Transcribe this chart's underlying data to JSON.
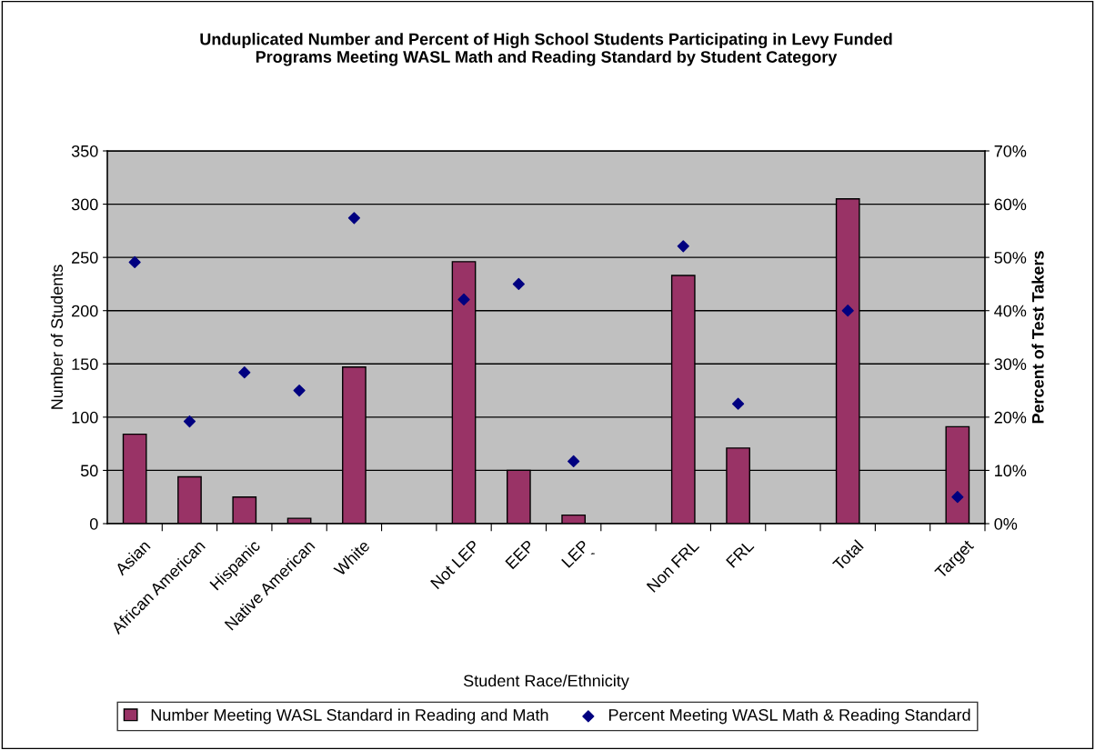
{
  "chart_data": {
    "type": "bar",
    "title": "Unduplicated Number and Percent of High School Students Participating in Levy Funded\nPrograms Meeting WASL Math and Reading Standard by Student Category",
    "xlabel": "Student Race/Ethnicity",
    "ylabel": "Number of Students",
    "y2label": "Percent of Test Takers",
    "categories": [
      "Asian",
      "African American",
      "Hispanic",
      "Native American",
      "White",
      null,
      "Not LEP",
      "EEP",
      "LEP\n`",
      null,
      "Non FRL",
      "FRL",
      null,
      "Total",
      null,
      "Target"
    ],
    "series": [
      {
        "name": "Number Meeting WASL Standard in Reading and Math",
        "color": "#993366",
        "values": [
          84,
          44,
          25,
          5,
          147,
          null,
          246,
          50,
          8,
          null,
          233,
          71,
          null,
          305,
          null,
          91
        ]
      },
      {
        "name": "Percent Meeting WASL Math & Reading Standard",
        "type": "scatter",
        "axis": "y2",
        "color": "#000080",
        "marker": "diamond",
        "values": [
          49.1,
          19.2,
          28.4,
          25.0,
          57.4,
          null,
          42.1,
          45.0,
          11.7,
          null,
          52.1,
          22.5,
          null,
          40.0,
          null,
          5.0
        ]
      }
    ],
    "ylim": [
      0,
      350
    ],
    "yticks": [
      0,
      50,
      100,
      150,
      200,
      250,
      300,
      350
    ],
    "y2lim": [
      0,
      70
    ],
    "y2ticks": [
      {
        "value": 0,
        "label": "0%"
      },
      {
        "value": 10,
        "label": "10%"
      },
      {
        "value": 20,
        "label": "20%"
      },
      {
        "value": 30,
        "label": "30%"
      },
      {
        "value": 40,
        "label": "40%"
      },
      {
        "value": 50,
        "label": "50%"
      },
      {
        "value": 60,
        "label": "60%"
      },
      {
        "value": 70,
        "label": "70%"
      }
    ],
    "grid": "y",
    "legend": "bottom"
  }
}
